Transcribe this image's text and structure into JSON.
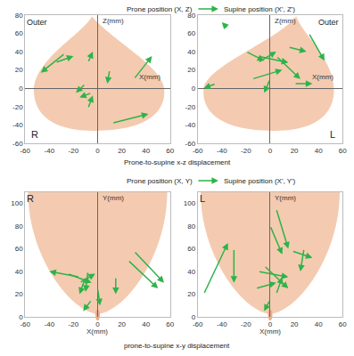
{
  "chart_data": [
    {
      "type": "arrows",
      "x_label": "X(mm)",
      "y_label": "Z(mm)",
      "start_label": "Prone position (X, Z)",
      "end_label": "Supine position (X', Z')",
      "caption": "Prone-to-supine x-z displacement",
      "color": "#2db34a",
      "grid": false,
      "xlim": [
        -60,
        60
      ],
      "xticks": [
        -60,
        -40,
        -20,
        0,
        20,
        40,
        60
      ],
      "ylim": [
        -60,
        80
      ],
      "yticks": [
        -60,
        -40,
        -20,
        0,
        20,
        40,
        60,
        80
      ],
      "annotations": [
        {
          "text": "Outer",
          "x": -50,
          "y": 72
        },
        {
          "text": "R",
          "x": -52,
          "y": -50
        }
      ],
      "x": [
        -27,
        -35,
        -8,
        -10,
        -5,
        10,
        30,
        12,
        -8
      ],
      "y": [
        38,
        28,
        28,
        5,
        -5,
        20,
        10,
        -38,
        -22
      ],
      "x_end": [
        -47,
        -20,
        -4,
        -18,
        -15,
        8,
        45,
        42,
        -4
      ],
      "y_end": [
        17,
        35,
        40,
        -5,
        -10,
        5,
        35,
        -28,
        -8
      ]
    },
    {
      "type": "arrows",
      "x_label": "X(mm)",
      "y_label": "Z(mm)",
      "color": "#2db34a",
      "grid": false,
      "xlim": [
        -60,
        60
      ],
      "xticks": [
        -60,
        -40,
        -20,
        0,
        20,
        40,
        60
      ],
      "ylim": [
        -60,
        80
      ],
      "yticks": [
        -60,
        -40,
        -20,
        0,
        20,
        40,
        60,
        80
      ],
      "annotations": [
        {
          "text": "Outer",
          "x": 48,
          "y": 72
        },
        {
          "text": "L",
          "x": 52,
          "y": -50
        }
      ],
      "x": [
        -35,
        -20,
        -10,
        -10,
        -45,
        5,
        -15,
        15,
        32,
        0,
        20
      ],
      "y": [
        65,
        40,
        28,
        35,
        5,
        35,
        10,
        45,
        60,
        10,
        5
      ],
      "x_end": [
        -40,
        -5,
        5,
        15,
        -55,
        25,
        10,
        30,
        45,
        -5,
        35
      ],
      "y_end": [
        72,
        30,
        40,
        28,
        0,
        10,
        20,
        40,
        30,
        -5,
        5
      ]
    },
    {
      "type": "arrows",
      "x_label": "X(mm)",
      "y_label": "Y(mm)",
      "start_label": "Prone position (X, Y)",
      "end_label": "Supine position (X', Y')",
      "caption": "prone-to-supine x-y displacement",
      "color": "#2db34a",
      "grid": false,
      "xlim": [
        -60,
        60
      ],
      "xticks": [
        -60,
        -40,
        -20,
        0,
        20,
        40,
        60
      ],
      "ylim": [
        0,
        110
      ],
      "yticks": [
        0,
        20,
        40,
        60,
        80,
        100
      ],
      "annotations": [
        {
          "text": "R",
          "x": -56,
          "y": 104
        }
      ],
      "x": [
        -15,
        -25,
        -10,
        -8,
        -15,
        0,
        30,
        25,
        15,
        -5
      ],
      "y": [
        35,
        38,
        35,
        40,
        30,
        25,
        58,
        50,
        35,
        15
      ],
      "x_end": [
        -40,
        -5,
        -15,
        -10,
        -2,
        2,
        55,
        50,
        15,
        -12
      ],
      "y_end": [
        40,
        30,
        20,
        22,
        38,
        10,
        30,
        25,
        20,
        5
      ]
    },
    {
      "type": "arrows",
      "x_label": "X(mm)",
      "y_label": "Y(mm)",
      "color": "#2db34a",
      "grid": false,
      "xlim": [
        -60,
        60
      ],
      "xticks": [
        -60,
        -40,
        -20,
        0,
        20,
        40,
        60
      ],
      "ylim": [
        0,
        110
      ],
      "yticks": [
        0,
        20,
        40,
        60,
        80,
        100
      ],
      "annotations": [
        {
          "text": "L",
          "x": -56,
          "y": 104
        }
      ],
      "x": [
        -55,
        -30,
        5,
        0,
        18,
        28,
        -10,
        -12,
        5,
        -5,
        0
      ],
      "y": [
        20,
        60,
        95,
        80,
        58,
        60,
        40,
        25,
        20,
        45,
        15
      ],
      "x_end": [
        -35,
        -30,
        15,
        10,
        35,
        25,
        15,
        5,
        10,
        15,
        -5
      ],
      "y_end": [
        65,
        30,
        60,
        55,
        52,
        40,
        35,
        30,
        35,
        25,
        5
      ]
    }
  ]
}
